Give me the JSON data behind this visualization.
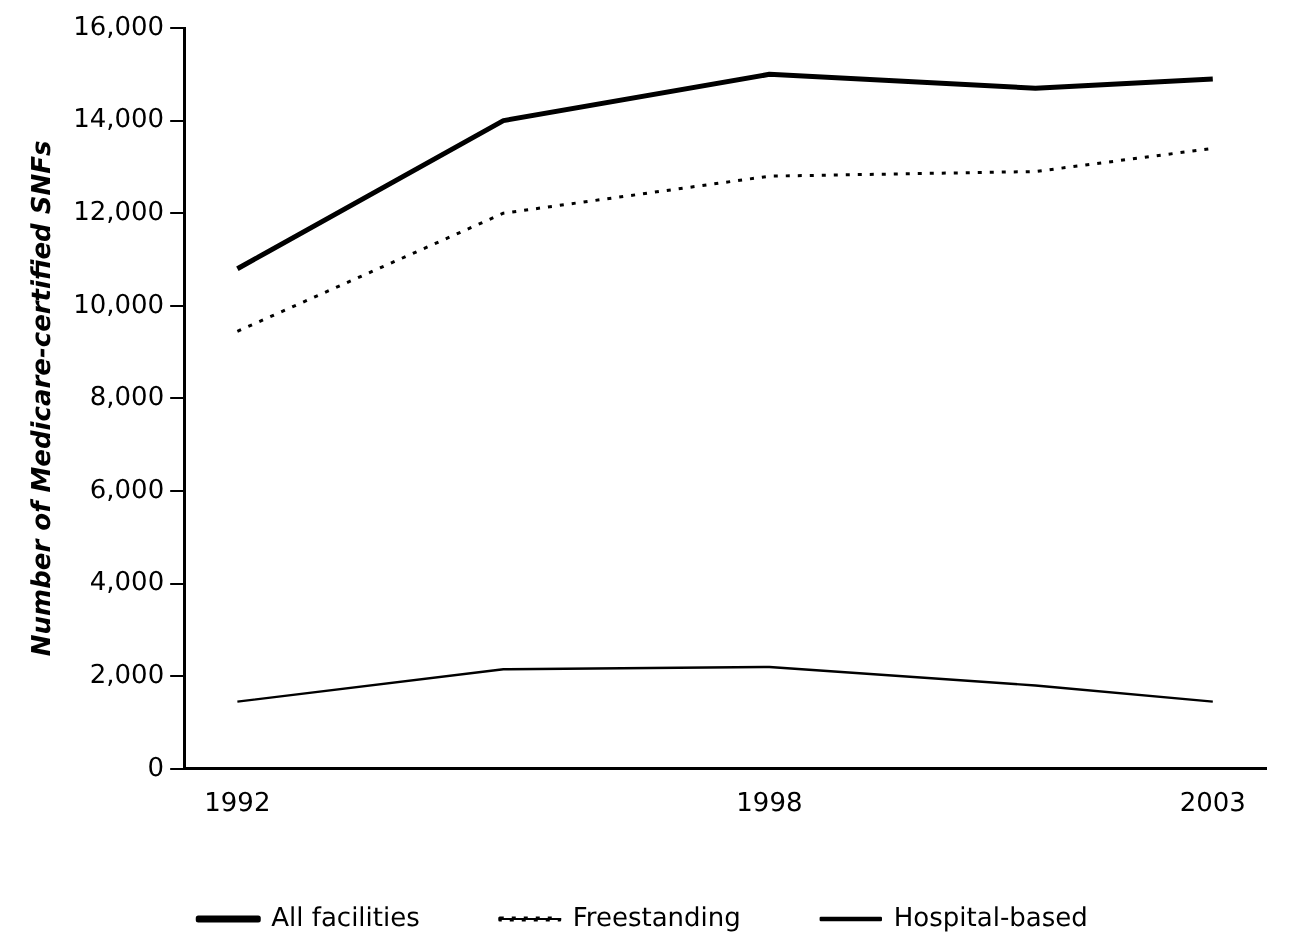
{
  "chart_data": {
    "type": "line",
    "ylabel": "Number of Medicare-certified SNFs",
    "x": [
      1992,
      1995,
      1998,
      2001,
      2003
    ],
    "xlim": [
      1991.4,
      2003.6
    ],
    "xticks": [
      1992,
      1998,
      2003
    ],
    "ylim": [
      0,
      16000
    ],
    "yticks": [
      {
        "value": 0,
        "label": "0"
      },
      {
        "value": 2000,
        "label": "2,000"
      },
      {
        "value": 4000,
        "label": "4,000"
      },
      {
        "value": 6000,
        "label": "6,000"
      },
      {
        "value": 8000,
        "label": "8,000"
      },
      {
        "value": 10000,
        "label": "10,000"
      },
      {
        "value": 12000,
        "label": "12,000"
      },
      {
        "value": 14000,
        "label": "14,000"
      },
      {
        "value": 16000,
        "label": "16,000"
      }
    ],
    "grid": false,
    "legend": "bottom",
    "marker": "none",
    "series": [
      {
        "name": "All facilities",
        "color": "#000000",
        "line_style": "solid",
        "values": [
          10800,
          14000,
          15000,
          14700,
          14900
        ]
      },
      {
        "name": "Freestanding",
        "color": "#000000",
        "line_style": "dotted",
        "values": [
          9450,
          12000,
          12800,
          12900,
          13400
        ]
      },
      {
        "name": "Hospital-based",
        "color": "#000000",
        "line_style": "solid",
        "values": [
          1450,
          2150,
          2200,
          1800,
          1450
        ]
      }
    ]
  }
}
